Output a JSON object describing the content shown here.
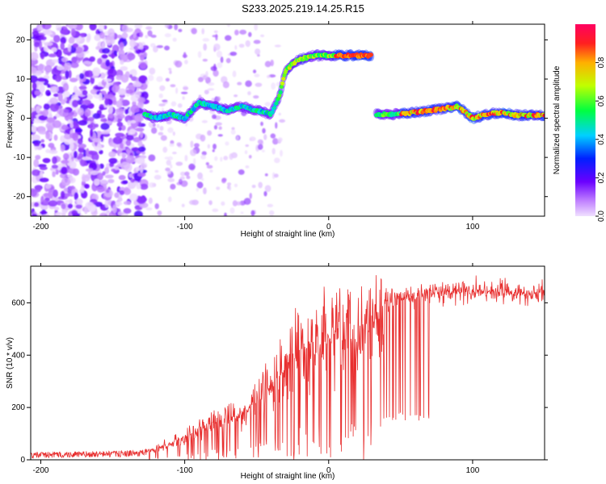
{
  "title": "S233.2025.219.14.25.R15",
  "chart_data": [
    {
      "type": "heatmap",
      "xlabel": "Height of straight line (km)",
      "ylabel": "Frequency (Hz)",
      "xlim": [
        -207,
        150
      ],
      "ylim": [
        -25,
        24
      ],
      "xticks": [
        -200,
        -100,
        0,
        100
      ],
      "yticks": [
        -20,
        -10,
        0,
        10,
        20
      ],
      "colorbar": {
        "label": "Normalized spectral amplitude",
        "range": [
          0,
          1
        ],
        "ticks": [
          0.0,
          0.2,
          0.4,
          0.6,
          0.8
        ]
      },
      "features": [
        {
          "label": "direct signal track",
          "points": [
            [
              -128,
              1
            ],
            [
              -120,
              0
            ],
            [
              -110,
              1
            ],
            [
              -100,
              0
            ],
            [
              -90,
              4
            ],
            [
              -80,
              3
            ],
            [
              -70,
              2
            ],
            [
              -60,
              3
            ],
            [
              -50,
              2
            ],
            [
              -40,
              1
            ],
            [
              -34,
              6
            ],
            [
              -30,
              12
            ],
            [
              -25,
              14
            ],
            [
              -20,
              15
            ],
            [
              -10,
              16
            ],
            [
              0,
              16
            ],
            [
              10,
              16
            ],
            [
              20,
              16
            ],
            [
              30,
              16
            ]
          ]
        },
        {
          "label": "reflected signal track",
          "points": [
            [
              33,
              1
            ],
            [
              45,
              1
            ],
            [
              60,
              1.5
            ],
            [
              70,
              2
            ],
            [
              80,
              2.5
            ],
            [
              90,
              3
            ],
            [
              100,
              0
            ],
            [
              110,
              1
            ],
            [
              120,
              1.5
            ],
            [
              130,
              0.8
            ],
            [
              150,
              0.8
            ]
          ]
        }
      ]
    },
    {
      "type": "line",
      "xlabel": "Height of straight line (km)",
      "ylabel": "SNR (10 * v/v)",
      "xlim": [
        -207,
        150
      ],
      "ylim": [
        0,
        740
      ],
      "xticks": [
        -200,
        -100,
        0,
        100
      ],
      "yticks": [
        0,
        200,
        400,
        600
      ],
      "series": [
        {
          "points": [
            [
              -207,
              18
            ],
            [
              -180,
              20
            ],
            [
              -150,
              22
            ],
            [
              -130,
              25
            ],
            [
              -120,
              40
            ],
            [
              -110,
              60
            ],
            [
              -100,
              90
            ],
            [
              -90,
              110
            ],
            [
              -80,
              150
            ],
            [
              -70,
              160
            ],
            [
              -60,
              180
            ],
            [
              -50,
              220
            ],
            [
              -40,
              280
            ],
            [
              -30,
              350
            ],
            [
              -20,
              420
            ],
            [
              -10,
              440
            ],
            [
              0,
              450
            ],
            [
              10,
              460
            ],
            [
              20,
              470
            ],
            [
              30,
              520
            ],
            [
              35,
              560
            ],
            [
              40,
              600
            ],
            [
              50,
              620
            ],
            [
              60,
              630
            ],
            [
              70,
              640
            ],
            [
              80,
              645
            ],
            [
              90,
              640
            ],
            [
              100,
              650
            ],
            [
              120,
              640
            ],
            [
              140,
              635
            ],
            [
              150,
              640
            ]
          ]
        }
      ]
    }
  ]
}
